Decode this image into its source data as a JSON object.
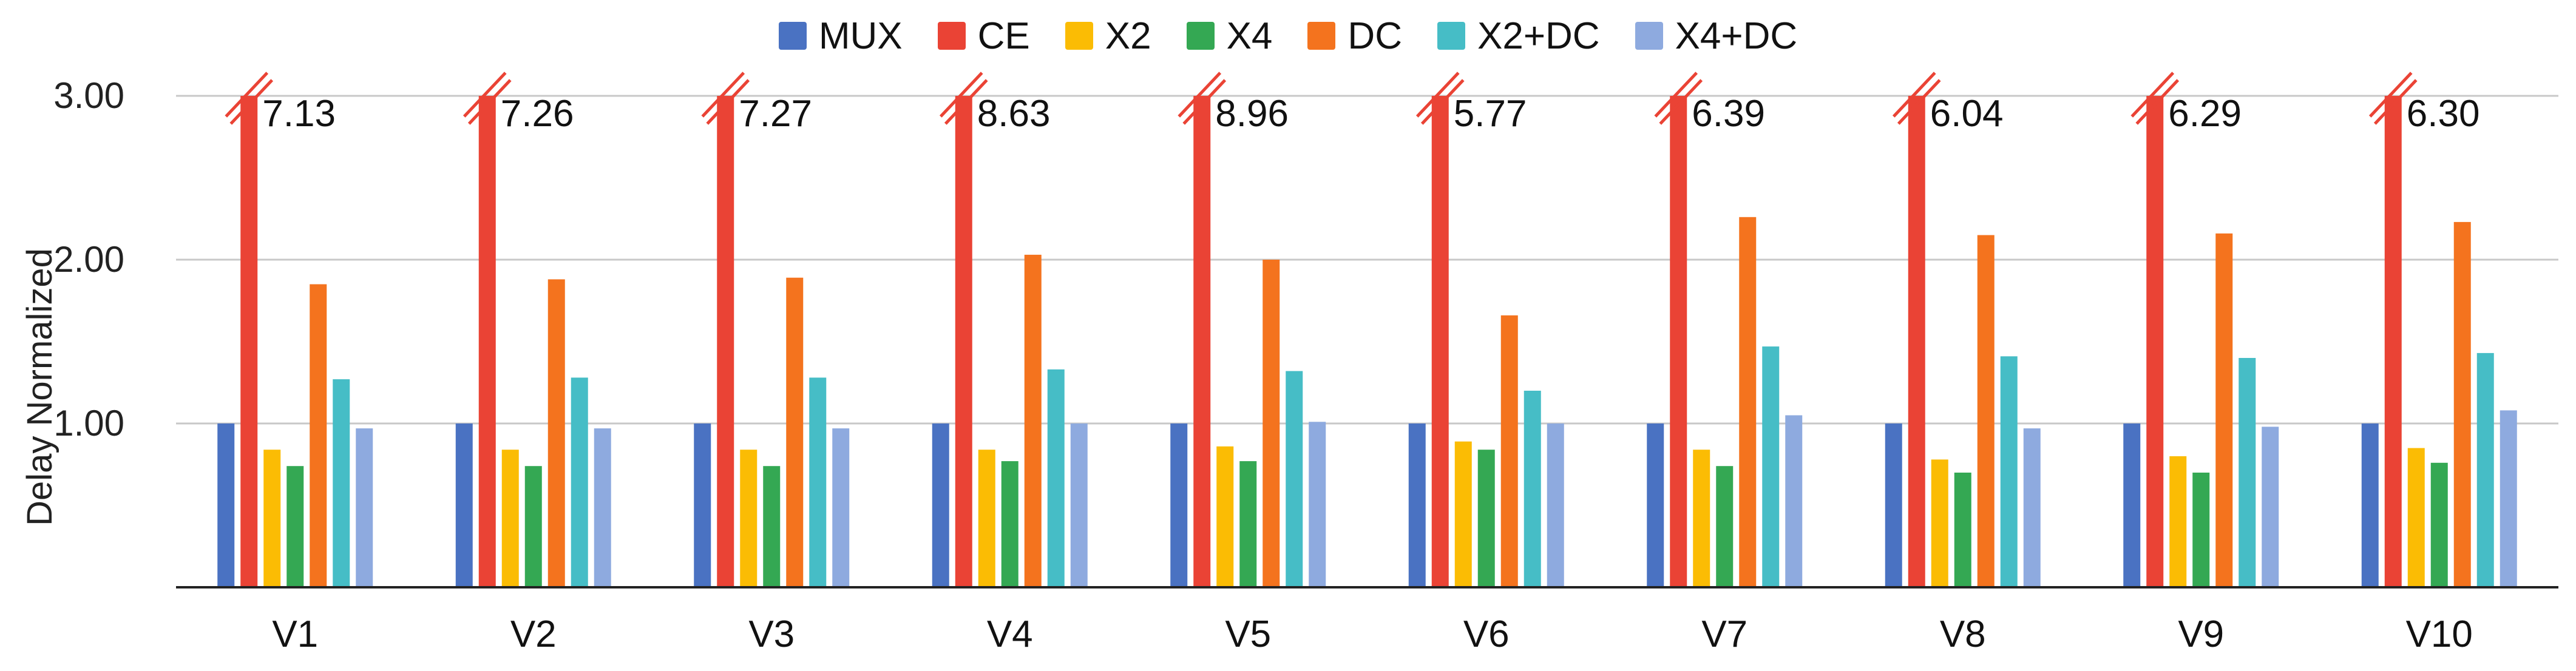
{
  "chart_data": {
    "type": "bar",
    "title": "",
    "xlabel": "",
    "ylabel": "Delay Normalized",
    "ylim": [
      0,
      3
    ],
    "yticks": [
      "1.00",
      "2.00",
      "3.00"
    ],
    "grid": true,
    "legend_position": "top-center",
    "categories": [
      "V1",
      "V2",
      "V3",
      "V4",
      "V5",
      "V6",
      "V7",
      "V8",
      "V9",
      "V10"
    ],
    "series": [
      {
        "name": "MUX",
        "color": "#4a72c2",
        "values": [
          1.0,
          1.0,
          1.0,
          1.0,
          1.0,
          1.0,
          1.0,
          1.0,
          1.0,
          1.0
        ]
      },
      {
        "name": "CE",
        "color": "#ea4335",
        "values": [
          7.13,
          7.26,
          7.27,
          8.63,
          8.96,
          5.77,
          6.39,
          6.04,
          6.29,
          6.3
        ],
        "truncated": true
      },
      {
        "name": "X2",
        "color": "#fbbc04",
        "values": [
          0.84,
          0.84,
          0.84,
          0.84,
          0.86,
          0.89,
          0.84,
          0.78,
          0.8,
          0.85
        ]
      },
      {
        "name": "X4",
        "color": "#34a853",
        "values": [
          0.74,
          0.74,
          0.74,
          0.77,
          0.77,
          0.84,
          0.74,
          0.7,
          0.7,
          0.76
        ]
      },
      {
        "name": "DC",
        "color": "#f4731e",
        "values": [
          1.85,
          1.88,
          1.89,
          2.03,
          2.0,
          1.66,
          2.26,
          2.15,
          2.16,
          2.23
        ]
      },
      {
        "name": "X2+DC",
        "color": "#46bdc6",
        "values": [
          1.27,
          1.28,
          1.28,
          1.33,
          1.32,
          1.2,
          1.47,
          1.41,
          1.4,
          1.43
        ]
      },
      {
        "name": "X4+DC",
        "color": "#8eaadf",
        "values": [
          0.97,
          0.97,
          0.97,
          1.0,
          1.01,
          1.0,
          1.05,
          0.97,
          0.98,
          1.08
        ]
      }
    ],
    "annotations": [
      "7.13",
      "7.26",
      "7.27",
      "8.63",
      "8.96",
      "5.77",
      "6.39",
      "6.04",
      "6.29",
      "6.30"
    ]
  }
}
